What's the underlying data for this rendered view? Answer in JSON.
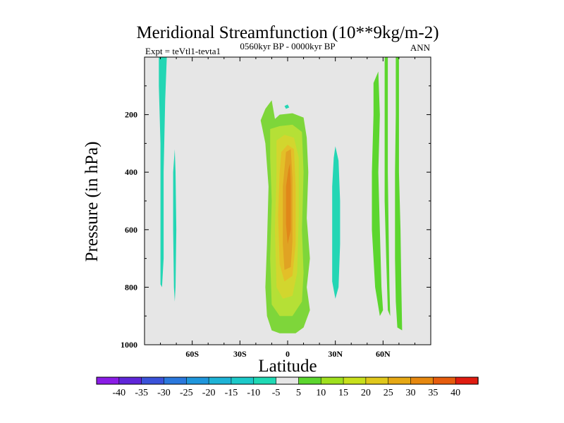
{
  "chart_data": {
    "type": "filled-contour",
    "title": "Meridional Streamfunction (10**9kg/m-2)",
    "subtitle_left": "Expt = teVtl1-tevta1",
    "subtitle_center": "0560kyr BP - 0000kyr BP",
    "subtitle_right": "ANN",
    "xlabel": "Latitude",
    "ylabel": "Pressure (in hPa)",
    "xlim": [
      -90,
      90
    ],
    "ylim": [
      0,
      1000
    ],
    "y_inverted": true,
    "grid": false,
    "xticks": [
      {
        "value": -60,
        "label": "60S"
      },
      {
        "value": -30,
        "label": "30S"
      },
      {
        "value": 0,
        "label": "0"
      },
      {
        "value": 30,
        "label": "30N"
      },
      {
        "value": 60,
        "label": "60N"
      }
    ],
    "yticks": [
      {
        "value": 200,
        "label": "200"
      },
      {
        "value": 400,
        "label": "400"
      },
      {
        "value": 600,
        "label": "600"
      },
      {
        "value": 800,
        "label": "800"
      },
      {
        "value": 1000,
        "label": "1000"
      }
    ],
    "background_color": "#e6e6e6",
    "colorbar": {
      "levels": [
        "-40",
        "-35",
        "-30",
        "-25",
        "-20",
        "-15",
        "-10",
        "-5",
        "5",
        "10",
        "15",
        "20",
        "25",
        "30",
        "35",
        "40"
      ],
      "colors": [
        "#8a1ce6",
        "#5f26d9",
        "#3a52d9",
        "#2a78dd",
        "#1f96dc",
        "#1eb3d6",
        "#1cc9c9",
        "#1fd9b4",
        "#e6e6e6",
        "#5cd62e",
        "#9fe01e",
        "#c8e01c",
        "#e0c81c",
        "#e6a814",
        "#e6880f",
        "#e65c0d",
        "#e01c10"
      ]
    },
    "regions": [
      {
        "name": "tropical-positive-cell",
        "level": "5 to 10",
        "color": "#7ed63a",
        "polygon": [
          [
            -17,
            220
          ],
          [
            -14,
            180
          ],
          [
            -10,
            150
          ],
          [
            -8,
            215
          ],
          [
            -5,
            200
          ],
          [
            3,
            195
          ],
          [
            10,
            210
          ],
          [
            12,
            280
          ],
          [
            13,
            400
          ],
          [
            12,
            560
          ],
          [
            14,
            700
          ],
          [
            12,
            800
          ],
          [
            14,
            880
          ],
          [
            10,
            940
          ],
          [
            5,
            960
          ],
          [
            -5,
            960
          ],
          [
            -10,
            950
          ],
          [
            -13,
            900
          ],
          [
            -14,
            800
          ],
          [
            -13,
            650
          ],
          [
            -12,
            450
          ],
          [
            -14,
            300
          ],
          [
            -16,
            245
          ]
        ]
      },
      {
        "name": "tropical-cell-level-10",
        "level": "10 to 15",
        "color": "#b5e036",
        "polygon": [
          [
            -11,
            250
          ],
          [
            -5,
            240
          ],
          [
            3,
            235
          ],
          [
            9,
            260
          ],
          [
            10,
            400
          ],
          [
            9,
            600
          ],
          [
            10,
            750
          ],
          [
            9,
            850
          ],
          [
            3,
            900
          ],
          [
            -5,
            900
          ],
          [
            -10,
            860
          ],
          [
            -11,
            700
          ],
          [
            -10,
            500
          ],
          [
            -11,
            350
          ]
        ]
      },
      {
        "name": "tropical-cell-level-15",
        "level": "15 to 20",
        "color": "#d2d62e",
        "polygon": [
          [
            -7,
            290
          ],
          [
            -2,
            270
          ],
          [
            4,
            280
          ],
          [
            7,
            350
          ],
          [
            7,
            550
          ],
          [
            6,
            750
          ],
          [
            3,
            830
          ],
          [
            -3,
            840
          ],
          [
            -7,
            800
          ],
          [
            -8,
            600
          ],
          [
            -7,
            400
          ]
        ]
      },
      {
        "name": "tropical-cell-level-20",
        "level": "20 to 25",
        "color": "#e3bf28",
        "polygon": [
          [
            -4,
            330
          ],
          [
            0,
            305
          ],
          [
            4,
            320
          ],
          [
            5,
            450
          ],
          [
            5,
            650
          ],
          [
            3,
            760
          ],
          [
            -2,
            780
          ],
          [
            -5,
            720
          ],
          [
            -6,
            550
          ],
          [
            -5,
            400
          ]
        ]
      },
      {
        "name": "tropical-cell-level-25",
        "level": "25 to 30",
        "color": "#e0a323",
        "polygon": [
          [
            -1,
            330
          ],
          [
            2,
            320
          ],
          [
            3,
            420
          ],
          [
            3,
            640
          ],
          [
            2,
            730
          ],
          [
            -2,
            740
          ],
          [
            -3,
            650
          ],
          [
            -3,
            450
          ]
        ]
      },
      {
        "name": "tropical-cell-core",
        "level": "30 to 35",
        "color": "#e08819",
        "polygon": [
          [
            0.5,
            390
          ],
          [
            1.5,
            370
          ],
          [
            2,
            450
          ],
          [
            2,
            600
          ],
          [
            0,
            650
          ],
          [
            -1,
            580
          ],
          [
            -1,
            450
          ]
        ]
      },
      {
        "name": "south-polar-negative-strip",
        "level": "-10 to -5",
        "color": "#23d6b4",
        "polygon": [
          [
            -81,
            0
          ],
          [
            -76,
            0
          ],
          [
            -77,
            150
          ],
          [
            -78,
            400
          ],
          [
            -78,
            700
          ],
          [
            -79,
            800
          ],
          [
            -80,
            790
          ],
          [
            -80,
            600
          ],
          [
            -80,
            300
          ],
          [
            -81,
            100
          ]
        ]
      },
      {
        "name": "south-midlatitude-negative-strip",
        "level": "-10 to -5",
        "color": "#23d6b4",
        "polygon": [
          [
            -71,
            320
          ],
          [
            -70.5,
            400
          ],
          [
            -70,
            600
          ],
          [
            -70.5,
            800
          ],
          [
            -71,
            850
          ],
          [
            -71.5,
            800
          ],
          [
            -72,
            600
          ],
          [
            -72,
            400
          ]
        ]
      },
      {
        "name": "north-subtropical-negative-cell",
        "level": "-10 to -5",
        "color": "#23d6b4",
        "polygon": [
          [
            30,
            310
          ],
          [
            32,
            360
          ],
          [
            33,
            500
          ],
          [
            33,
            650
          ],
          [
            32,
            800
          ],
          [
            30,
            840
          ],
          [
            28,
            780
          ],
          [
            28,
            600
          ],
          [
            28,
            450
          ],
          [
            29,
            350
          ]
        ]
      },
      {
        "name": "upper-negative-speck",
        "level": "-10 to -5",
        "color": "#23d6b4",
        "polygon": [
          [
            -2,
            170
          ],
          [
            0,
            165
          ],
          [
            1,
            175
          ],
          [
            -1,
            180
          ]
        ]
      },
      {
        "name": "north-positive-strip-a",
        "level": "5 to 10",
        "color": "#5cd62e",
        "polygon": [
          [
            54,
            90
          ],
          [
            57,
            50
          ],
          [
            58,
            200
          ],
          [
            57,
            400
          ],
          [
            58,
            600
          ],
          [
            59,
            800
          ],
          [
            60,
            880
          ],
          [
            58,
            900
          ],
          [
            55,
            800
          ],
          [
            53,
            600
          ],
          [
            53,
            400
          ],
          [
            54,
            200
          ]
        ]
      },
      {
        "name": "north-positive-strip-b",
        "level": "5 to 10",
        "color": "#5cd62e",
        "polygon": [
          [
            61,
            0
          ],
          [
            63,
            0
          ],
          [
            63,
            200
          ],
          [
            63,
            400
          ],
          [
            63.5,
            600
          ],
          [
            64,
            800
          ],
          [
            64.5,
            900
          ],
          [
            63,
            880
          ],
          [
            62,
            700
          ],
          [
            61,
            500
          ],
          [
            61,
            250
          ]
        ]
      },
      {
        "name": "north-positive-strip-c",
        "level": "5 to 10",
        "color": "#5cd62e",
        "polygon": [
          [
            68,
            0
          ],
          [
            70,
            0
          ],
          [
            70,
            200
          ],
          [
            70,
            400
          ],
          [
            71,
            600
          ],
          [
            71.5,
            800
          ],
          [
            72,
            950
          ],
          [
            69,
            940
          ],
          [
            68,
            850
          ],
          [
            67.5,
            700
          ],
          [
            67.5,
            400
          ],
          [
            68,
            200
          ]
        ]
      }
    ]
  }
}
